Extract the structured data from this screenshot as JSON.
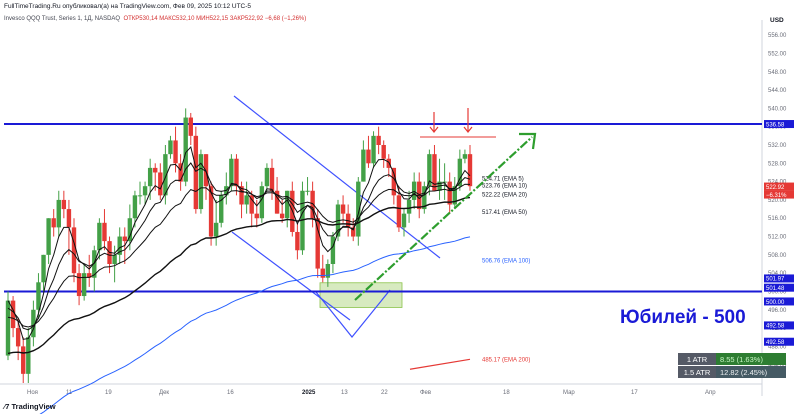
{
  "header": {
    "published": "FullTimeTrading.Ru опубликовал(а) на TradingView.com, Фев 09, 2025 10:12 UTC-5",
    "symbol_line": "Invesco QQQ Trust, Series 1, 1Д, NASDAQ",
    "ohlc": "ОТКР530,14  МАКС532,10  МИН522,15  ЗАКР522,92  −6,68 (−1,26%)"
  },
  "currency": "USD",
  "brand": "TradingView",
  "annotation": "Юбилей - 500",
  "atr": [
    {
      "label": "1 ATR",
      "value": "8.55 (1.63%)"
    },
    {
      "label": "1.5 ATR",
      "value": "12.82 (2.45%)"
    }
  ],
  "colors": {
    "up": "#43a047",
    "down": "#e53935",
    "level": "#1a1ad6",
    "ema100": "#2962ff",
    "ema200": "#e53935",
    "arrow": "#2e9e2e",
    "wedge": "#3f51ff"
  },
  "chart_data": {
    "type": "candlestick",
    "y_range": [
      480,
      558
    ],
    "y_ticks": [
      484,
      488,
      492,
      496,
      500,
      504,
      508,
      512,
      516,
      520,
      524,
      528,
      532,
      536,
      540,
      544,
      548,
      552,
      556
    ],
    "x_labels": [
      "Ноя",
      "11",
      "19",
      "Дек",
      "16",
      "2025",
      "13",
      "22",
      "Фев",
      "18",
      "Мар",
      "17",
      "Апр"
    ],
    "candles": [
      [
        486,
        498,
        500,
        485
      ],
      [
        498,
        492,
        499,
        490
      ],
      [
        492,
        488,
        494,
        485
      ],
      [
        488,
        482,
        490,
        480
      ],
      [
        482,
        490,
        492,
        480
      ],
      [
        490,
        496,
        498,
        488
      ],
      [
        496,
        502,
        504,
        494
      ],
      [
        502,
        508,
        508,
        500
      ],
      [
        508,
        516,
        516,
        506
      ],
      [
        516,
        514,
        518,
        512
      ],
      [
        514,
        520,
        522,
        512
      ],
      [
        520,
        518,
        522,
        516
      ],
      [
        518,
        514,
        520,
        508
      ],
      [
        514,
        504,
        516,
        502
      ],
      [
        504,
        499,
        506,
        497
      ],
      [
        499,
        504,
        506,
        498
      ],
      [
        504,
        503,
        508,
        501
      ],
      [
        503,
        509,
        510,
        500
      ],
      [
        509,
        515,
        516,
        507
      ],
      [
        515,
        511,
        518,
        509
      ],
      [
        511,
        506,
        512,
        504
      ],
      [
        506,
        508,
        510,
        502
      ],
      [
        508,
        512,
        514,
        506
      ],
      [
        512,
        511,
        514,
        506
      ],
      [
        511,
        516,
        519,
        509
      ],
      [
        516,
        521,
        522,
        514
      ],
      [
        521,
        521,
        524,
        519
      ],
      [
        521,
        523,
        524,
        519
      ],
      [
        523,
        527,
        529,
        520
      ],
      [
        527,
        526,
        528,
        522
      ],
      [
        526,
        521,
        528,
        520
      ],
      [
        521,
        530,
        532,
        519
      ],
      [
        530,
        533,
        534,
        529
      ],
      [
        533,
        528,
        536,
        526
      ],
      [
        528,
        524,
        530,
        522
      ],
      [
        524,
        538,
        540,
        523
      ],
      [
        538,
        534,
        539,
        532
      ],
      [
        534,
        518,
        536,
        517
      ],
      [
        518,
        530,
        531,
        517
      ],
      [
        530,
        523,
        530,
        520
      ],
      [
        523,
        512,
        524,
        510
      ],
      [
        512,
        515,
        520,
        510
      ],
      [
        515,
        521,
        522,
        514
      ],
      [
        521,
        523,
        526,
        519
      ],
      [
        523,
        529,
        530,
        522
      ],
      [
        529,
        523,
        530,
        521
      ],
      [
        523,
        519,
        524,
        516
      ],
      [
        519,
        521,
        524,
        517
      ],
      [
        521,
        517,
        522,
        514
      ],
      [
        517,
        516,
        520,
        514
      ],
      [
        516,
        523,
        524,
        515
      ],
      [
        523,
        527,
        528,
        522
      ],
      [
        527,
        522,
        529,
        520
      ],
      [
        522,
        517,
        525,
        517
      ],
      [
        517,
        516,
        520,
        515
      ],
      [
        516,
        522,
        522,
        514
      ],
      [
        522,
        513,
        524,
        512
      ],
      [
        513,
        509,
        515,
        507
      ],
      [
        509,
        522,
        524,
        508
      ],
      [
        522,
        522,
        525,
        521
      ],
      [
        522,
        516,
        524,
        514
      ],
      [
        516,
        505,
        518,
        503
      ],
      [
        505,
        503,
        508,
        502
      ],
      [
        503,
        506,
        507,
        501
      ],
      [
        506,
        512,
        513,
        504
      ],
      [
        512,
        519,
        520,
        511
      ],
      [
        519,
        517,
        521,
        515
      ],
      [
        517,
        514,
        519,
        512
      ],
      [
        514,
        512,
        516,
        511
      ],
      [
        512,
        524,
        525,
        510
      ],
      [
        524,
        531,
        533,
        524
      ],
      [
        531,
        528,
        534,
        527
      ],
      [
        528,
        534,
        535,
        527
      ],
      [
        534,
        532,
        536,
        530
      ],
      [
        532,
        529,
        533,
        527
      ],
      [
        529,
        527,
        530,
        525
      ],
      [
        527,
        521,
        527,
        519
      ],
      [
        521,
        514,
        523,
        513
      ],
      [
        514,
        517,
        518,
        512
      ],
      [
        517,
        520,
        522,
        515
      ],
      [
        520,
        524,
        526,
        518
      ],
      [
        524,
        518,
        526,
        516
      ],
      [
        518,
        523,
        524,
        517
      ],
      [
        523,
        530,
        531,
        521
      ],
      [
        530,
        522,
        532,
        522
      ],
      [
        522,
        524,
        529,
        520
      ],
      [
        524,
        524,
        528,
        520
      ],
      [
        524,
        519,
        526,
        517
      ],
      [
        519,
        523,
        525,
        518
      ],
      [
        523,
        529,
        531,
        522
      ],
      [
        529,
        530,
        531,
        528
      ],
      [
        530,
        523,
        532,
        522
      ]
    ],
    "ema_labels": [
      {
        "value": 524.71,
        "name": "EMA 5"
      },
      {
        "value": 523.76,
        "name": "EMA 10"
      },
      {
        "value": 522.22,
        "name": "EMA 20"
      },
      {
        "value": 517.41,
        "name": "EMA 50"
      },
      {
        "value": 506.76,
        "name": "EMA 100"
      },
      {
        "value": 485.17,
        "name": "EMA 200"
      }
    ],
    "price_tags": [
      {
        "value": "536.58",
        "bg": "#1a1ad6",
        "fg": "#ffffff"
      },
      {
        "value": "522.92",
        "bg": "#e53935",
        "fg": "#ffffff",
        "sub": "−6.31%"
      },
      {
        "value": "501.97",
        "bg": "#1a1ad6",
        "fg": "#ffffff"
      },
      {
        "value": "501.48",
        "bg": "#1a1ad6",
        "fg": "#ffffff"
      },
      {
        "value": "500.00",
        "bg": "#1a1ad6",
        "fg": "#ffffff"
      },
      {
        "value": "492.58",
        "bg": "#1a1ad6",
        "fg": "#ffffff"
      },
      {
        "value": "492.58",
        "bg": "#1a1ad6",
        "fg": "#ffffff"
      }
    ],
    "levels": [
      536.58,
      500.0
    ]
  }
}
